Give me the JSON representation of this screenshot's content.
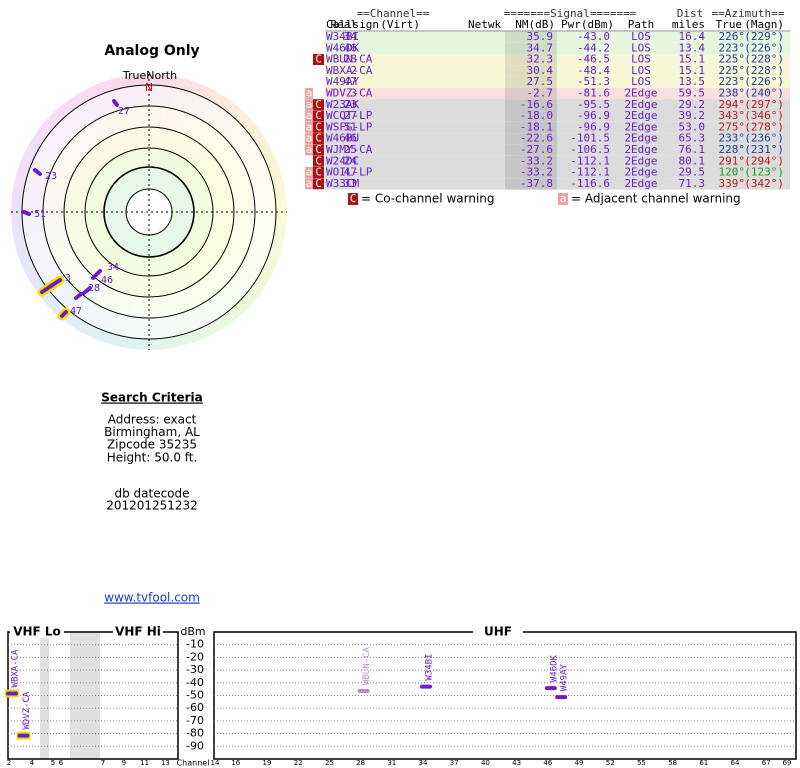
{
  "header": {
    "title": "Analog Only",
    "true_north": "TrueNorth",
    "north": "N"
  },
  "radar_labels": [
    "27",
    "23",
    "51",
    "3",
    "34",
    "46",
    "28",
    "47"
  ],
  "table": {
    "group_headers": [
      "==Channel==",
      "=======Signal=======",
      "Dist",
      "==Azimuth=="
    ],
    "columns": [
      "Callsign",
      "Real",
      "(Virt)",
      "Netwk",
      "NM(dB)",
      "Pwr(dBm)",
      "Path",
      "miles",
      "True",
      "(Magn)"
    ],
    "rows": [
      {
        "callsign": "W34BI",
        "real": "34",
        "nm": "35.9",
        "pwr": "-43.0",
        "path": "LOS",
        "dist": "16.4",
        "az_true": "226°",
        "az_magn": "(229°)",
        "flags": [],
        "az_color": "#1a3fa0"
      },
      {
        "callsign": "W46DK",
        "real": "46",
        "nm": "34.7",
        "pwr": "-44.2",
        "path": "LOS",
        "dist": "13.4",
        "az_true": "223°",
        "az_magn": "(226°)",
        "flags": [],
        "az_color": "#1a3fa0"
      },
      {
        "callsign": "WBUN-CA",
        "real": "28",
        "nm": "32.3",
        "pwr": "-46.5",
        "path": "LOS",
        "dist": "15.1",
        "az_true": "225°",
        "az_magn": "(228°)",
        "flags": [
          "C"
        ],
        "az_color": "#1a3fa0"
      },
      {
        "callsign": "WBXA-CA",
        "real": "2",
        "nm": "30.4",
        "pwr": "-48.4",
        "path": "LOS",
        "dist": "15.1",
        "az_true": "225°",
        "az_magn": "(228°)",
        "flags": [],
        "az_color": "#1a3fa0"
      },
      {
        "callsign": "W49AY",
        "real": "47",
        "nm": "27.5",
        "pwr": "-51.3",
        "path": "LOS",
        "dist": "13.5",
        "az_true": "223°",
        "az_magn": "(226°)",
        "flags": [],
        "az_color": "#1a3fa0"
      },
      {
        "callsign": "WDVZ-CA",
        "real": "3",
        "nm": "-2.7",
        "pwr": "-81.6",
        "path": "2Edge",
        "dist": "59.5",
        "az_true": "238°",
        "az_magn": "(240°)",
        "flags": [
          "a"
        ],
        "az_color": "#1a3fa0"
      },
      {
        "callsign": "W23AK",
        "real": "23",
        "nm": "-16.6",
        "pwr": "-95.5",
        "path": "2Edge",
        "dist": "29.2",
        "az_true": "294°",
        "az_magn": "(297°)",
        "flags": [
          "a",
          "C"
        ],
        "az_color": "#c01818"
      },
      {
        "callsign": "WCQT-LP",
        "real": "27",
        "nm": "-18.0",
        "pwr": "-96.9",
        "path": "2Edge",
        "dist": "39.2",
        "az_true": "343°",
        "az_magn": "(346°)",
        "flags": [
          "a",
          "C"
        ],
        "az_color": "#c01818"
      },
      {
        "callsign": "WSFG-LP",
        "real": "51",
        "nm": "-18.1",
        "pwr": "-96.9",
        "path": "2Edge",
        "dist": "53.0",
        "az_true": "275°",
        "az_magn": "(278°)",
        "flags": [
          "a",
          "C"
        ],
        "az_color": "#c01818"
      },
      {
        "callsign": "W46BU",
        "real": "46",
        "nm": "-22.6",
        "pwr": "-101.5",
        "path": "2Edge",
        "dist": "65.3",
        "az_true": "233°",
        "az_magn": "(236°)",
        "flags": [
          "a",
          "C"
        ],
        "az_color": "#1a3fa0"
      },
      {
        "callsign": "WJMY-CA",
        "real": "25",
        "nm": "-27.6",
        "pwr": "-106.5",
        "path": "2Edge",
        "dist": "76.1",
        "az_true": "228°",
        "az_magn": "(231°)",
        "flags": [
          "a",
          "C"
        ],
        "az_color": "#1a3fa0"
      },
      {
        "callsign": "W24DC",
        "real": "24",
        "nm": "-33.2",
        "pwr": "-112.1",
        "path": "2Edge",
        "dist": "80.1",
        "az_true": "291°",
        "az_magn": "(294°)",
        "flags": [
          "C"
        ],
        "az_color": "#c01818"
      },
      {
        "callsign": "WOIL-LP",
        "real": "47",
        "nm": "-33.2",
        "pwr": "-112.1",
        "path": "2Edge",
        "dist": "29.5",
        "az_true": "120°",
        "az_magn": "(123°)",
        "flags": [
          "a",
          "C"
        ],
        "az_color": "#1e9a1e"
      },
      {
        "callsign": "W33CM",
        "real": "33",
        "nm": "-37.8",
        "pwr": "-116.6",
        "path": "2Edge",
        "dist": "71.3",
        "az_true": "339°",
        "az_magn": "(342°)",
        "flags": [
          "a",
          "C"
        ],
        "az_color": "#c01818"
      }
    ]
  },
  "legend": [
    {
      "flag": "C",
      "text": "= Co-channel warning"
    },
    {
      "flag": "a",
      "text": "= Adjacent channel warning"
    }
  ],
  "search": {
    "title": "Search Criteria",
    "lines": [
      "Address: exact",
      "Birmingham, AL",
      "Zipcode 35235",
      "Height: 50.0 ft."
    ],
    "datecode_label": "db datecode",
    "datecode": "201201251232",
    "link": "www.tvfool.com"
  },
  "spectrum": {
    "sections": [
      "VHF Lo",
      "VHF Hi",
      "UHF"
    ],
    "y_label": "dBm",
    "x_label": "Channel",
    "ylim": [
      0,
      -100
    ],
    "yticks": [
      -10,
      -20,
      -30,
      -40,
      -50,
      -60,
      -70,
      -80,
      -90
    ],
    "channel_ticks": [
      2,
      4,
      5,
      6,
      7,
      9,
      11,
      13,
      14,
      16,
      19,
      22,
      25,
      28,
      31,
      34,
      37,
      40,
      43,
      46,
      49,
      52,
      55,
      58,
      61,
      64,
      67,
      69
    ],
    "stations": [
      {
        "name": "WBXA-CA",
        "channel": 2,
        "value": -48.4,
        "color": "#6a1ec8"
      },
      {
        "name": "WDVZ-CA",
        "channel": 3,
        "value": -81.6,
        "color": "#6a1ec8"
      },
      {
        "name": "WBUN-CA",
        "channel": 28,
        "value": -46.5,
        "color": "#b88ad8"
      },
      {
        "name": "W34BI",
        "channel": 34,
        "value": -43.0,
        "color": "#6a1ec8"
      },
      {
        "name": "W46DK",
        "channel": 46,
        "value": -44.2,
        "color": "#6a1ec8"
      },
      {
        "name": "W49AY",
        "channel": 47,
        "value": -51.3,
        "color": "#6a1ec8"
      }
    ]
  }
}
